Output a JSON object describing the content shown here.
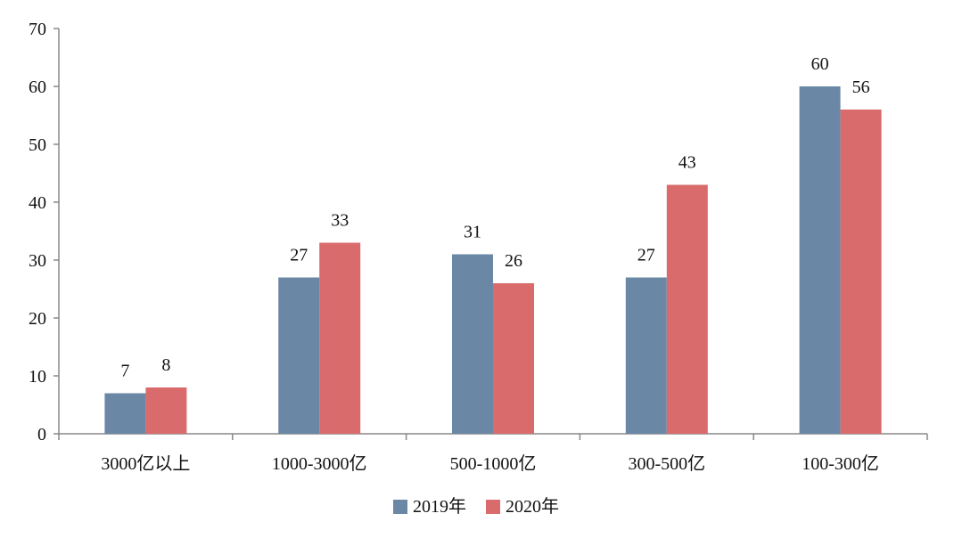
{
  "chart_data": {
    "type": "bar",
    "title": "",
    "xlabel": "",
    "ylabel": "",
    "categories": [
      "3000亿以上",
      "1000-3000亿",
      "500-1000亿",
      "300-500亿",
      "100-300亿"
    ],
    "series": [
      {
        "name": "2019年",
        "values": [
          7,
          27,
          31,
          27,
          60
        ],
        "color": "#6a88a6"
      },
      {
        "name": "2020年",
        "values": [
          8,
          33,
          26,
          43,
          56
        ],
        "color": "#d96b6d"
      }
    ],
    "ylim": [
      0,
      70
    ],
    "yticks": [
      0,
      10,
      20,
      30,
      40,
      50,
      60,
      70
    ],
    "grid": false,
    "legend_position": "bottom",
    "data_labels": true
  }
}
